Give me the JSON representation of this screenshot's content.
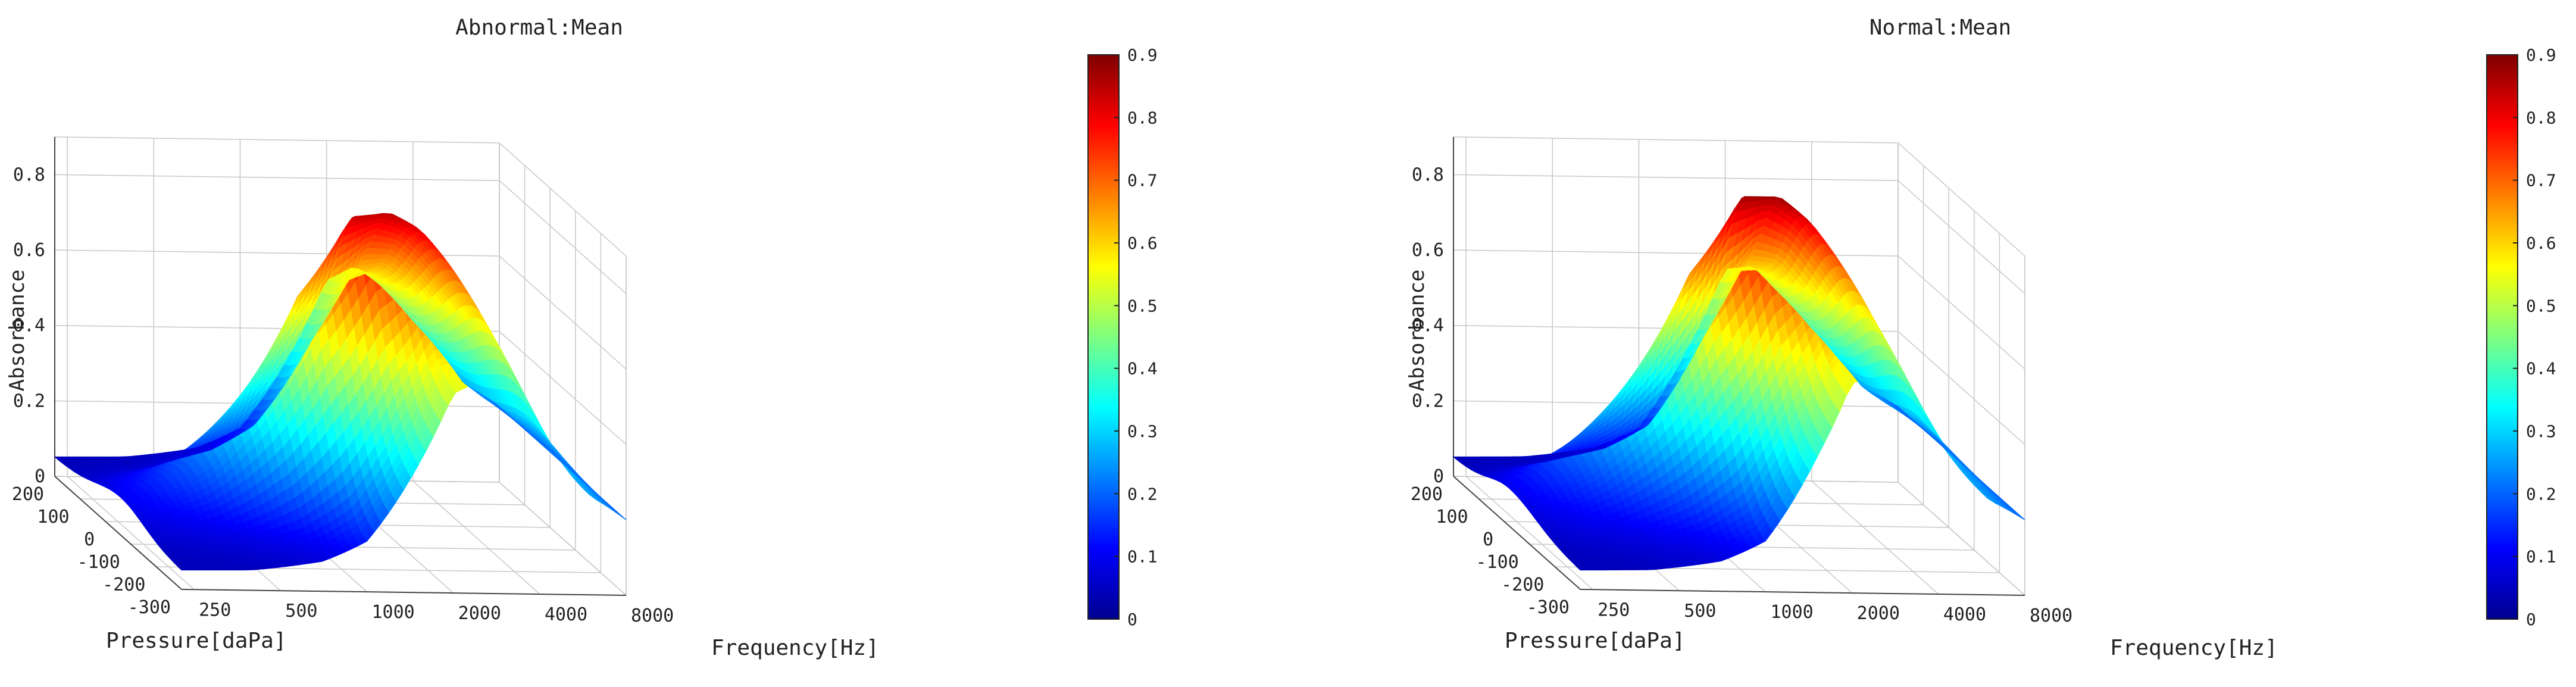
{
  "chart_data": [
    {
      "type": "surface",
      "title": "Abnormal:Mean",
      "xlabel": "Frequency[Hz]",
      "ylabel": "Pressure[daPa]",
      "zlabel": "Absorbance",
      "x_scale": "log",
      "x_ticks": [
        "250",
        "500",
        "1000",
        "2000",
        "4000",
        "8000"
      ],
      "x_tick_values": [
        250,
        500,
        1000,
        2000,
        4000,
        8000
      ],
      "y_ticks": [
        "200",
        "100",
        "0",
        "-100",
        "-200",
        "-300"
      ],
      "y_tick_values": [
        200,
        100,
        0,
        -100,
        -200,
        -300
      ],
      "z_ticks": [
        "0",
        "0.2",
        "0.4",
        "0.6",
        "0.8"
      ],
      "z_tick_values": [
        0,
        0.2,
        0.4,
        0.6,
        0.8
      ],
      "xlim": [
        226,
        8000
      ],
      "ylim": [
        -300,
        200
      ],
      "zlim": [
        0,
        0.9
      ],
      "colorbar": {
        "colormap": "jet",
        "range": [
          0,
          0.9
        ],
        "ticks": [
          "0",
          "0.1",
          "0.2",
          "0.3",
          "0.4",
          "0.5",
          "0.6",
          "0.7",
          "0.8",
          "0.9"
        ],
        "tick_values": [
          0,
          0.1,
          0.2,
          0.3,
          0.4,
          0.5,
          0.6,
          0.7,
          0.8,
          0.9
        ]
      },
      "grid": true,
      "surface_profile": {
        "frequency": [
          226,
          400,
          700,
          1000,
          1500,
          2000,
          2500,
          3000,
          4000,
          5000,
          6000,
          8000
        ],
        "absorbance_at_peak_pressure": [
          0.1,
          0.2,
          0.42,
          0.65,
          0.85,
          0.86,
          0.82,
          0.75,
          0.6,
          0.46,
          0.32,
          0.2
        ],
        "absorbance_at_extreme_pressure": [
          0.05,
          0.05,
          0.07,
          0.12,
          0.32,
          0.52,
          0.56,
          0.52,
          0.42,
          0.34,
          0.26,
          0.2
        ],
        "peak_pressure": -60
      }
    },
    {
      "type": "surface",
      "title": "Normal:Mean",
      "xlabel": "Frequency[Hz]",
      "ylabel": "Pressure[daPa]",
      "zlabel": "Absorbance",
      "x_scale": "log",
      "x_ticks": [
        "250",
        "500",
        "1000",
        "2000",
        "4000",
        "8000"
      ],
      "x_tick_values": [
        250,
        500,
        1000,
        2000,
        4000,
        8000
      ],
      "y_ticks": [
        "200",
        "100",
        "0",
        "-100",
        "-200",
        "-300"
      ],
      "y_tick_values": [
        200,
        100,
        0,
        -100,
        -200,
        -300
      ],
      "z_ticks": [
        "0",
        "0.2",
        "0.4",
        "0.6",
        "0.8"
      ],
      "z_tick_values": [
        0,
        0.2,
        0.4,
        0.6,
        0.8
      ],
      "xlim": [
        226,
        8000
      ],
      "ylim": [
        -300,
        200
      ],
      "zlim": [
        0,
        0.9
      ],
      "colorbar": {
        "colormap": "jet",
        "range": [
          0,
          0.9
        ],
        "ticks": [
          "0",
          "0.1",
          "0.2",
          "0.3",
          "0.4",
          "0.5",
          "0.6",
          "0.7",
          "0.8",
          "0.9"
        ],
        "tick_values": [
          0,
          0.1,
          0.2,
          0.3,
          0.4,
          0.5,
          0.6,
          0.7,
          0.8,
          0.9
        ]
      },
      "grid": true,
      "surface_profile": {
        "frequency": [
          226,
          400,
          700,
          1000,
          1500,
          2000,
          2500,
          3000,
          4000,
          5000,
          6000,
          8000
        ],
        "absorbance_at_peak_pressure": [
          0.1,
          0.22,
          0.45,
          0.68,
          0.88,
          0.88,
          0.82,
          0.74,
          0.58,
          0.44,
          0.3,
          0.2
        ],
        "absorbance_at_extreme_pressure": [
          0.05,
          0.05,
          0.07,
          0.12,
          0.34,
          0.55,
          0.56,
          0.5,
          0.4,
          0.32,
          0.25,
          0.2
        ],
        "peak_pressure": -20
      }
    }
  ]
}
